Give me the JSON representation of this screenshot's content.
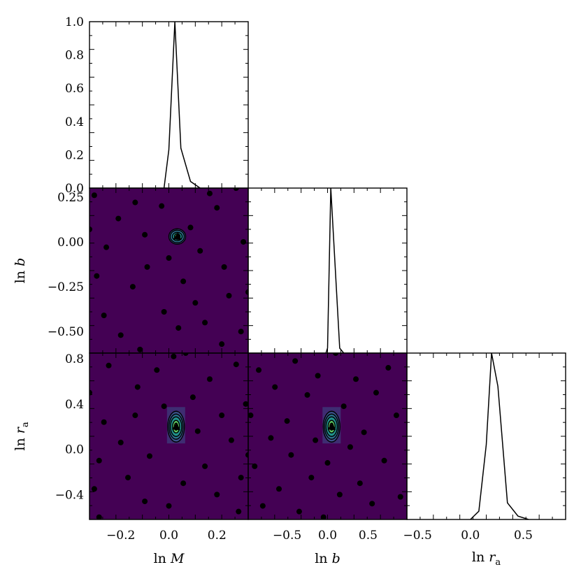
{
  "chart_data": [
    {
      "panel": "hist-lnM",
      "type": "line",
      "xlim": [
        -0.33,
        0.33
      ],
      "ylim": [
        0.0,
        1.0
      ],
      "yticks": [
        0.0,
        0.2,
        0.4,
        0.6,
        0.8,
        1.0
      ],
      "ytick_labels": [
        "0.0",
        "0.2",
        "0.4",
        "0.6",
        "0.8",
        "1.0"
      ],
      "x": [
        -0.02,
        0.0,
        0.025,
        0.05,
        0.09,
        0.13
      ],
      "y": [
        0.0,
        0.23,
        1.0,
        0.24,
        0.04,
        0.0
      ]
    },
    {
      "panel": "hist-lnb",
      "type": "line",
      "xlim": [
        -0.98,
        0.98
      ],
      "ylim": [
        0.0,
        1.0
      ],
      "x": [
        -0.02,
        0.0,
        0.04,
        0.15,
        0.2
      ],
      "y": [
        0.0,
        0.03,
        1.0,
        0.03,
        0.0
      ]
    },
    {
      "panel": "hist-lnra",
      "type": "line",
      "xlim": [
        -0.6,
        0.9
      ],
      "ylim": [
        0.0,
        1.0
      ],
      "x": [
        0.0,
        0.08,
        0.15,
        0.2,
        0.26,
        0.35,
        0.45,
        0.55
      ],
      "y": [
        0.0,
        0.05,
        0.45,
        1.0,
        0.8,
        0.1,
        0.02,
        0.0
      ]
    },
    {
      "panel": "contour-lnM-lnb",
      "type": "scatter",
      "xlim": [
        -0.33,
        0.33
      ],
      "ylim": [
        -0.62,
        0.3
      ],
      "yticks": [
        -0.5,
        -0.25,
        0.0,
        0.25
      ],
      "ytick_labels": [
        "−0.50",
        "−0.25",
        "0.00",
        "0.25"
      ],
      "ylabel": "ln b",
      "peak": [
        0.035,
        0.03
      ],
      "points": [
        [
          -0.31,
          0.26
        ],
        [
          -0.33,
          0.07
        ],
        [
          -0.3,
          -0.19
        ],
        [
          -0.27,
          -0.41
        ],
        [
          -0.26,
          -0.03
        ],
        [
          -0.21,
          0.13
        ],
        [
          -0.2,
          -0.52
        ],
        [
          -0.15,
          -0.25
        ],
        [
          -0.14,
          0.22
        ],
        [
          -0.12,
          -0.6
        ],
        [
          -0.1,
          0.04
        ],
        [
          -0.09,
          -0.14
        ],
        [
          -0.03,
          0.2
        ],
        [
          -0.02,
          -0.39
        ],
        [
          0.0,
          -0.09
        ],
        [
          0.04,
          -0.48
        ],
        [
          0.06,
          -0.22
        ],
        [
          0.09,
          0.08
        ],
        [
          0.11,
          -0.34
        ],
        [
          0.13,
          -0.05
        ],
        [
          0.15,
          -0.45
        ],
        [
          0.17,
          0.27
        ],
        [
          0.2,
          0.19
        ],
        [
          0.22,
          -0.57
        ],
        [
          0.23,
          -0.14
        ],
        [
          0.25,
          -0.3
        ],
        [
          0.28,
          0.3
        ],
        [
          0.3,
          -0.5
        ],
        [
          0.31,
          0.0
        ],
        [
          0.33,
          -0.28
        ]
      ]
    },
    {
      "panel": "contour-lnM-lnra",
      "type": "scatter",
      "xlim": [
        -0.33,
        0.33
      ],
      "ylim": [
        -0.62,
        0.85
      ],
      "xticks": [
        -0.2,
        0.0,
        0.2
      ],
      "xtick_labels": [
        "−0.2",
        "0.0",
        "0.2"
      ],
      "yticks": [
        -0.4,
        0.0,
        0.4,
        0.8
      ],
      "ytick_labels": [
        "−0.4",
        "0.0",
        "0.4",
        "0.8"
      ],
      "xlabel": "ln M",
      "ylabel": "ln r_a",
      "peak": [
        0.03,
        0.2
      ],
      "points": [
        [
          -0.33,
          0.5
        ],
        [
          -0.31,
          -0.35
        ],
        [
          -0.29,
          -0.1
        ],
        [
          -0.27,
          0.24
        ],
        [
          -0.25,
          0.74
        ],
        [
          -0.2,
          0.06
        ],
        [
          -0.17,
          -0.25
        ],
        [
          -0.14,
          0.3
        ],
        [
          -0.13,
          0.55
        ],
        [
          -0.1,
          -0.46
        ],
        [
          -0.08,
          -0.06
        ],
        [
          -0.05,
          0.7
        ],
        [
          -0.02,
          0.38
        ],
        [
          0.0,
          -0.5
        ],
        [
          0.02,
          0.82
        ],
        [
          0.06,
          -0.3
        ],
        [
          0.1,
          0.46
        ],
        [
          0.12,
          0.16
        ],
        [
          0.15,
          -0.15
        ],
        [
          0.17,
          0.62
        ],
        [
          0.2,
          -0.4
        ],
        [
          0.22,
          0.3
        ],
        [
          0.26,
          0.08
        ],
        [
          0.28,
          0.75
        ],
        [
          0.3,
          -0.25
        ],
        [
          0.32,
          0.4
        ],
        [
          0.33,
          -0.05
        ],
        [
          0.29,
          -0.55
        ],
        [
          -0.29,
          -0.6
        ],
        [
          0.07,
          0.85
        ]
      ]
    },
    {
      "panel": "contour-lnb-lnra",
      "type": "scatter",
      "xlim": [
        -0.98,
        0.98
      ],
      "ylim": [
        -0.62,
        0.85
      ],
      "xticks": [
        -0.5,
        0.0,
        0.5
      ],
      "xtick_labels": [
        "−0.5",
        "0.0",
        "0.5"
      ],
      "xlabel": "ln b",
      "peak": [
        0.05,
        0.2
      ],
      "points": [
        [
          -0.95,
          0.3
        ],
        [
          -0.9,
          -0.15
        ],
        [
          -0.85,
          0.7
        ],
        [
          -0.8,
          -0.5
        ],
        [
          -0.7,
          0.1
        ],
        [
          -0.65,
          0.55
        ],
        [
          -0.6,
          -0.35
        ],
        [
          -0.5,
          0.25
        ],
        [
          -0.45,
          -0.05
        ],
        [
          -0.4,
          0.78
        ],
        [
          -0.35,
          -0.55
        ],
        [
          -0.25,
          0.48
        ],
        [
          -0.2,
          -0.25
        ],
        [
          -0.15,
          0.08
        ],
        [
          -0.12,
          0.65
        ],
        [
          -0.05,
          -0.6
        ],
        [
          0.0,
          -0.12
        ],
        [
          0.1,
          0.85
        ],
        [
          0.15,
          -0.4
        ],
        [
          0.2,
          0.38
        ],
        [
          0.28,
          0.02
        ],
        [
          0.35,
          0.62
        ],
        [
          0.4,
          -0.3
        ],
        [
          0.45,
          0.15
        ],
        [
          0.55,
          -0.48
        ],
        [
          0.6,
          0.5
        ],
        [
          0.7,
          -0.1
        ],
        [
          0.75,
          0.72
        ],
        [
          0.85,
          0.3
        ],
        [
          0.9,
          -0.42
        ]
      ]
    },
    {
      "panel": "hist-lnra-axis",
      "type": "line",
      "xticks": [
        -0.5,
        0.0,
        0.5
      ],
      "xtick_labels": [
        "−0.5",
        "0.0",
        "0.5"
      ],
      "xlabel": "ln r_a"
    }
  ],
  "colors": {
    "background": "#440154",
    "contour_levels": [
      "#3b528b",
      "#21918c",
      "#5ec962",
      "#fde725"
    ],
    "line": "#000000",
    "points": "#000000"
  }
}
